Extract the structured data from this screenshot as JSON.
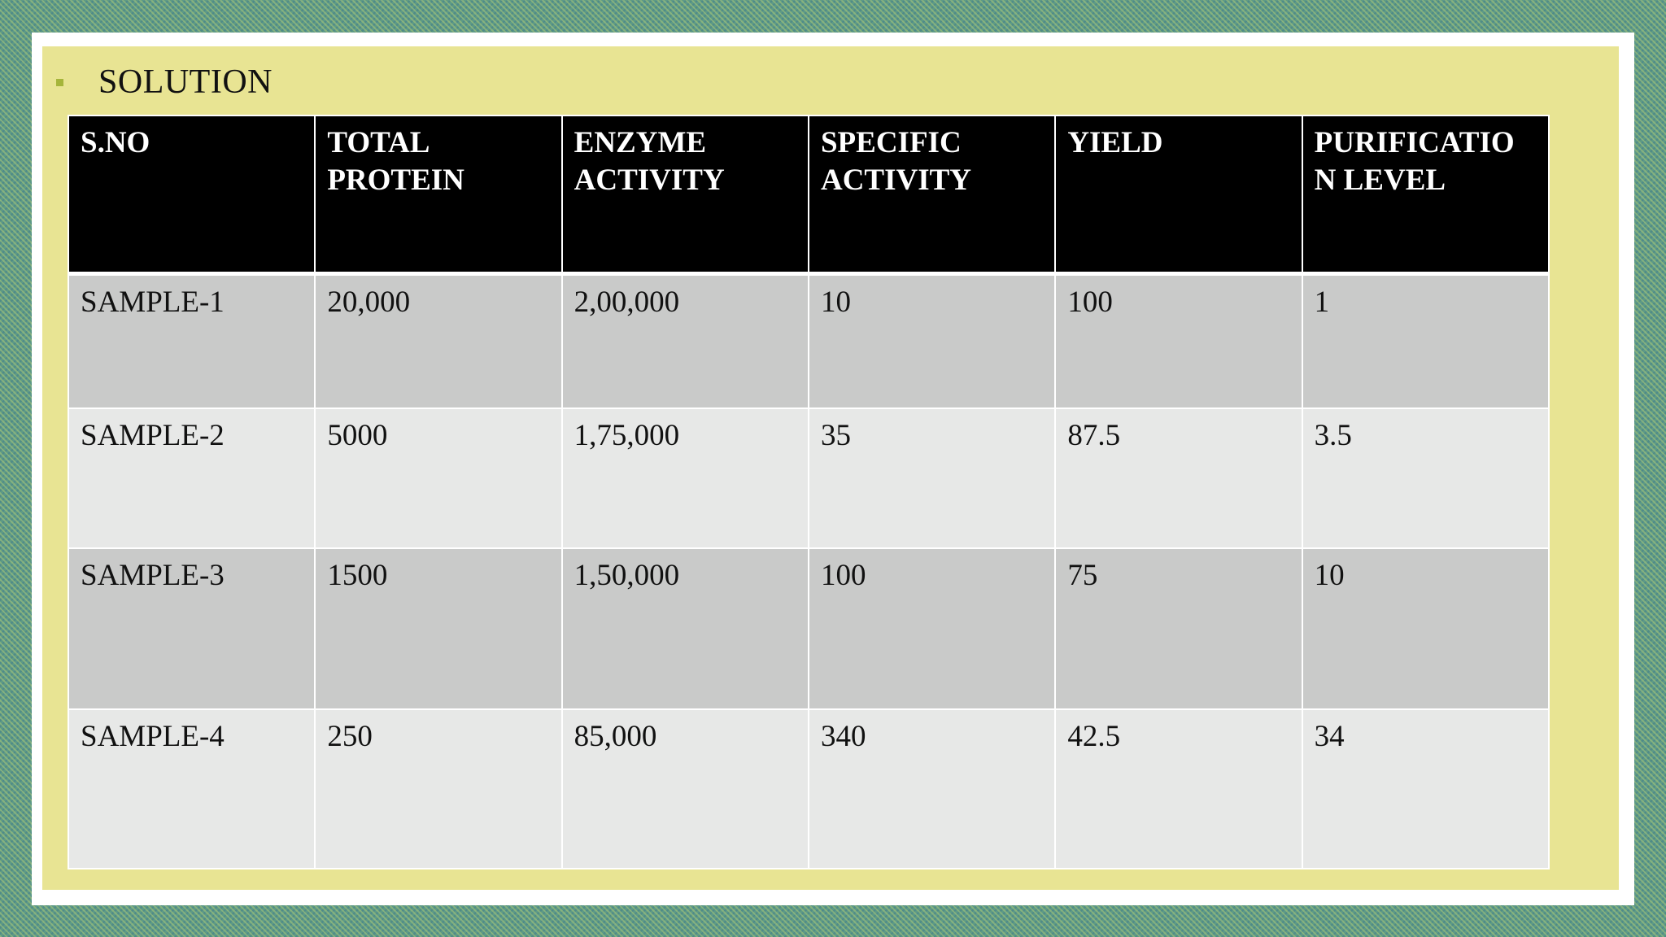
{
  "slide": {
    "bullet_text": "SOLUTION"
  },
  "table": {
    "headers": [
      "S.NO",
      "TOTAL PROTEIN",
      "ENZYME ACTIVITY",
      "SPECIFIC ACTIVITY",
      "YIELD",
      "PURIFICATIO N LEVEL"
    ],
    "rows": [
      [
        "SAMPLE-1",
        "20,000",
        "2,00,000",
        "10",
        "100",
        "1"
      ],
      [
        "SAMPLE-2",
        "5000",
        "1,75,000",
        "35",
        "87.5",
        "3.5"
      ],
      [
        "SAMPLE-3",
        "1500",
        "1,50,000",
        "100",
        "75",
        "10"
      ],
      [
        "SAMPLE-4",
        "250",
        "85,000",
        "340",
        "42.5",
        "34"
      ]
    ]
  },
  "colors": {
    "slide_background": "#e8e493",
    "header_background": "#000000",
    "row_odd": "#c9cac9",
    "row_even": "#e7e8e7",
    "bullet": "#a5b53a"
  }
}
